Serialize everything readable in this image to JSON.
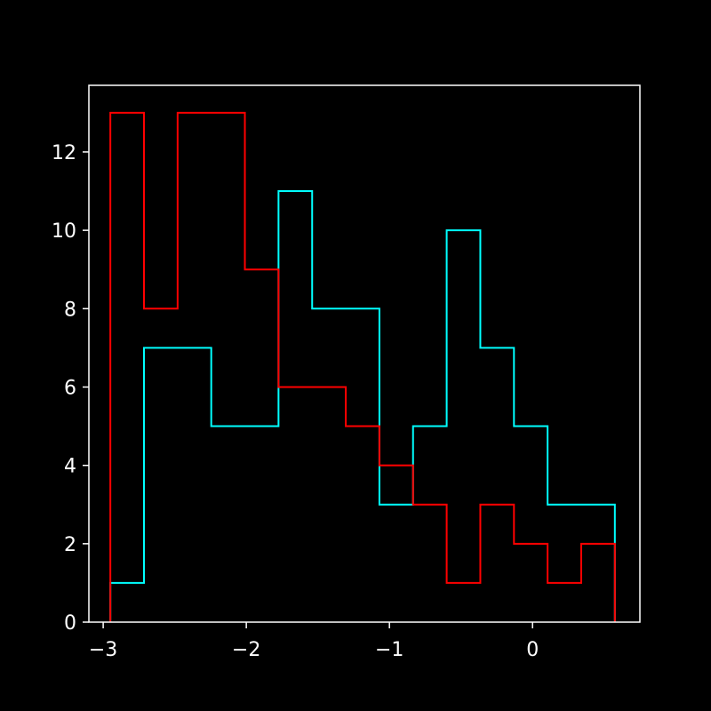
{
  "chart_data": {
    "type": "histogram-step",
    "title": "",
    "xlabel": "",
    "ylabel": "",
    "xlim": [
      -3.1,
      0.75
    ],
    "ylim": [
      0,
      13.7
    ],
    "xticks": [
      -3,
      -2,
      -1,
      0
    ],
    "xtick_labels": [
      "−3",
      "−2",
      "−1",
      "0"
    ],
    "yticks": [
      0,
      2,
      4,
      6,
      8,
      10,
      12
    ],
    "ytick_labels": [
      "0",
      "2",
      "4",
      "6",
      "8",
      "10",
      "12"
    ],
    "bin_edges": [
      -2.95,
      -2.715,
      -2.48,
      -2.245,
      -2.01,
      -1.775,
      -1.54,
      -1.305,
      -1.07,
      -0.835,
      -0.6,
      -0.365,
      -0.13,
      0.105,
      0.34,
      0.575
    ],
    "grid": false,
    "series": [
      {
        "color": "#00ffff",
        "counts": [
          1,
          7,
          7,
          5,
          5,
          11,
          8,
          8,
          3,
          5,
          10,
          7,
          5,
          3,
          3
        ]
      },
      {
        "color": "#ff0000",
        "counts": [
          13,
          8,
          13,
          13,
          9,
          6,
          6,
          5,
          4,
          3,
          1,
          3,
          2,
          1,
          2
        ]
      }
    ],
    "colors": {
      "background": "#000000",
      "axes": "#ffffff"
    }
  }
}
